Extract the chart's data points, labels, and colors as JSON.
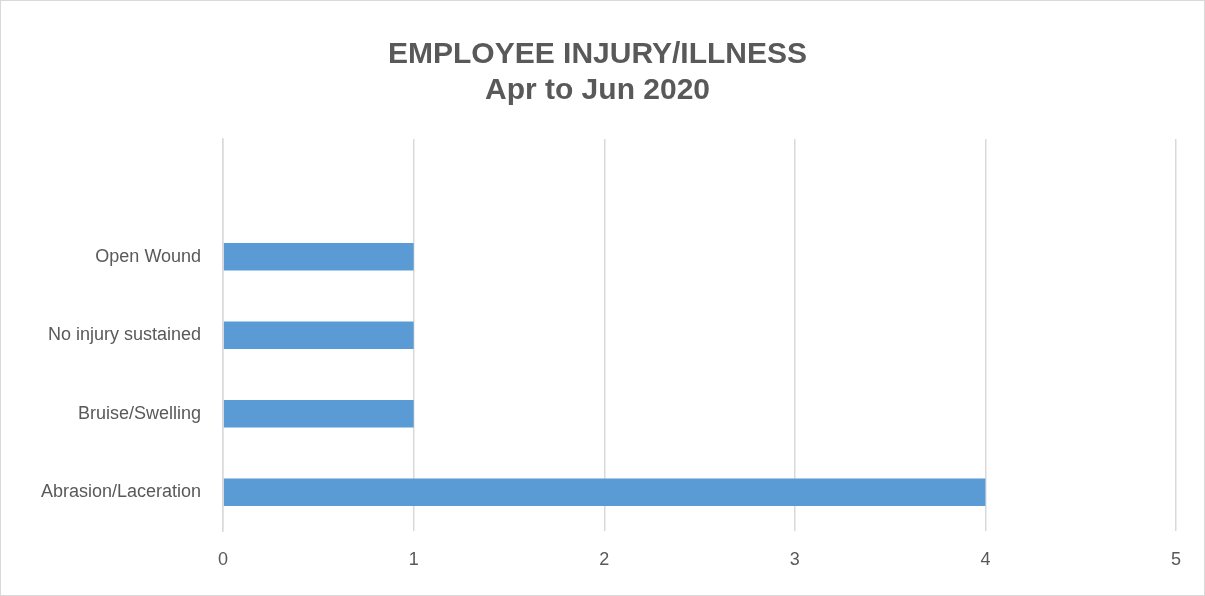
{
  "chart_data": {
    "type": "bar",
    "orientation": "horizontal",
    "title": [
      "EMPLOYEE INJURY/ILLNESS",
      "Apr to Jun 2020"
    ],
    "categories": [
      null,
      "Open Wound",
      "No injury sustained",
      "Bruise/Swelling",
      "Abrasion/Laceration"
    ],
    "values": [
      null,
      1,
      1,
      1,
      4
    ],
    "color": "#5b9bd5",
    "xlim": [
      0,
      5
    ],
    "xticks": [
      0,
      1,
      2,
      3,
      4,
      5
    ],
    "grid": "x",
    "legend": false
  }
}
